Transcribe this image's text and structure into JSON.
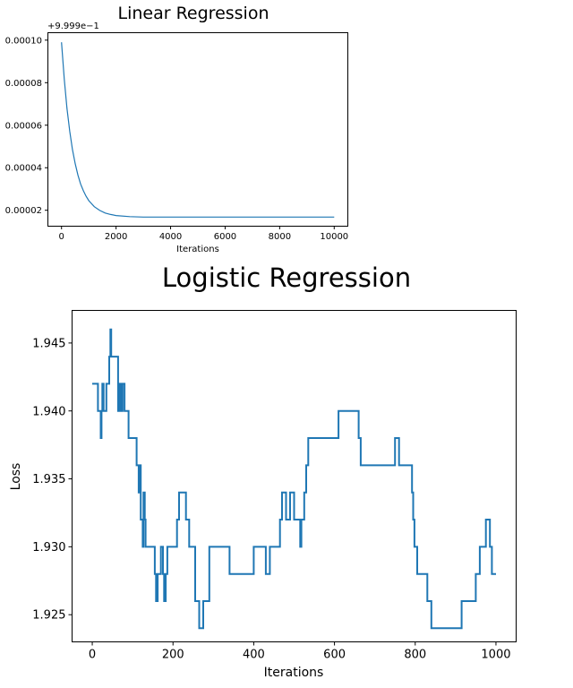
{
  "chart_data": [
    {
      "type": "line",
      "title": "Linear Regression",
      "xlabel": "Iterations",
      "ylabel": "",
      "offset_label": "+9.999e−1",
      "xlim": [
        -500,
        10500
      ],
      "ylim": [
        1.25e-05,
        0.0001035
      ],
      "x_ticks": [
        0,
        2000,
        4000,
        6000,
        8000,
        10000
      ],
      "x_tick_labels": [
        "0",
        "2000",
        "4000",
        "6000",
        "8000",
        "10000"
      ],
      "y_ticks": [
        2e-05,
        4e-05,
        6e-05,
        8e-05,
        0.0001
      ],
      "y_tick_labels": [
        "0.00002",
        "0.00004",
        "0.00006",
        "0.00008",
        "0.00010"
      ],
      "grid": false,
      "series": [
        {
          "color": "#1f77b4",
          "x": [
            0,
            100,
            200,
            300,
            400,
            500,
            600,
            700,
            800,
            900,
            1000,
            1200,
            1400,
            1600,
            1800,
            2000,
            2500,
            3000,
            4000,
            5000,
            6000,
            7000,
            8000,
            9000,
            10000
          ],
          "y": [
            9.9e-05,
            8.16e-05,
            6.79e-05,
            5.71e-05,
            4.86e-05,
            4.19e-05,
            3.66e-05,
            3.24e-05,
            2.92e-05,
            2.66e-05,
            2.45e-05,
            2.17e-05,
            1.99e-05,
            1.87e-05,
            1.8e-05,
            1.75e-05,
            1.7e-05,
            1.68e-05,
            1.68e-05,
            1.68e-05,
            1.68e-05,
            1.68e-05,
            1.68e-05,
            1.68e-05,
            1.68e-05
          ]
        }
      ]
    },
    {
      "type": "line",
      "title": "Logistic Regression",
      "xlabel": "Iterations",
      "ylabel": "Loss",
      "xlim": [
        -50,
        1050
      ],
      "ylim": [
        1.923,
        1.9474
      ],
      "x_ticks": [
        0,
        200,
        400,
        600,
        800,
        1000
      ],
      "x_tick_labels": [
        "0",
        "200",
        "400",
        "600",
        "800",
        "1000"
      ],
      "y_ticks": [
        1.925,
        1.93,
        1.935,
        1.94,
        1.945
      ],
      "y_tick_labels": [
        "1.925",
        "1.930",
        "1.935",
        "1.940",
        "1.945"
      ],
      "grid": false,
      "series": [
        {
          "color": "#1f77b4",
          "x": [
            0,
            12,
            14,
            18,
            21,
            23,
            25,
            28,
            35,
            42,
            45,
            47,
            50,
            55,
            60,
            64,
            66,
            68,
            70,
            72,
            75,
            80,
            85,
            90,
            95,
            100,
            110,
            115,
            117,
            120,
            122,
            125,
            127,
            130,
            132,
            135,
            140,
            150,
            155,
            158,
            162,
            165,
            170,
            175,
            178,
            182,
            186,
            190,
            195,
            200,
            210,
            215,
            225,
            232,
            240,
            245,
            250,
            255,
            265,
            275,
            280,
            290,
            310,
            340,
            380,
            400,
            415,
            430,
            440,
            455,
            465,
            470,
            475,
            480,
            490,
            500,
            510,
            515,
            518,
            520,
            525,
            530,
            535,
            540,
            545,
            550,
            580,
            600,
            610,
            620,
            640,
            650,
            660,
            665,
            670,
            680,
            700,
            740,
            750,
            755,
            760,
            765,
            770,
            780,
            790,
            792,
            795,
            798,
            800,
            805,
            810,
            820,
            828,
            830,
            840,
            850,
            860,
            880,
            900,
            910,
            915,
            920,
            930,
            940,
            950,
            960,
            965,
            970,
            975,
            980,
            985,
            990,
            995,
            1000
          ],
          "y": [
            1.942,
            1.942,
            1.94,
            1.94,
            1.938,
            1.94,
            1.942,
            1.94,
            1.942,
            1.944,
            1.946,
            1.944,
            1.944,
            1.944,
            1.944,
            1.94,
            1.942,
            1.94,
            1.942,
            1.94,
            1.942,
            1.94,
            1.94,
            1.938,
            1.938,
            1.938,
            1.936,
            1.934,
            1.936,
            1.932,
            1.932,
            1.93,
            1.934,
            1.932,
            1.93,
            1.93,
            1.93,
            1.93,
            1.928,
            1.926,
            1.928,
            1.928,
            1.93,
            1.928,
            1.926,
            1.928,
            1.93,
            1.93,
            1.93,
            1.93,
            1.932,
            1.934,
            1.934,
            1.932,
            1.93,
            1.93,
            1.93,
            1.926,
            1.924,
            1.926,
            1.926,
            1.93,
            1.93,
            1.928,
            1.928,
            1.93,
            1.93,
            1.928,
            1.93,
            1.93,
            1.932,
            1.934,
            1.934,
            1.932,
            1.934,
            1.932,
            1.932,
            1.93,
            1.932,
            1.932,
            1.934,
            1.936,
            1.938,
            1.938,
            1.938,
            1.938,
            1.938,
            1.938,
            1.94,
            1.94,
            1.94,
            1.94,
            1.938,
            1.936,
            1.936,
            1.936,
            1.936,
            1.936,
            1.938,
            1.938,
            1.936,
            1.936,
            1.936,
            1.936,
            1.936,
            1.934,
            1.932,
            1.93,
            1.93,
            1.928,
            1.928,
            1.928,
            1.928,
            1.926,
            1.924,
            1.924,
            1.924,
            1.924,
            1.924,
            1.924,
            1.926,
            1.926,
            1.926,
            1.926,
            1.928,
            1.93,
            1.93,
            1.93,
            1.932,
            1.932,
            1.93,
            1.928,
            1.928,
            1.928
          ]
        }
      ]
    }
  ]
}
